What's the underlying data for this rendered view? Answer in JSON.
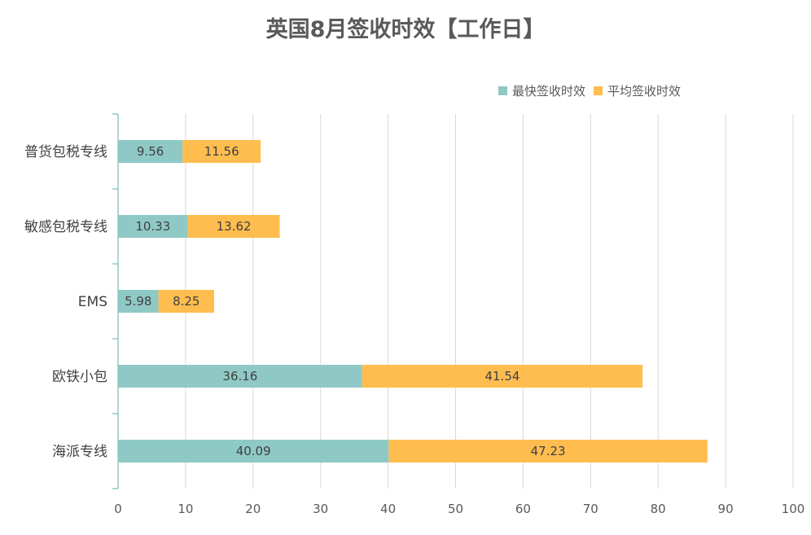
{
  "chart_data": {
    "type": "bar",
    "orientation": "horizontal",
    "stacked": true,
    "title": "英国8月签收时效【工作日】",
    "categories": [
      "普货包税专线",
      "敏感包税专线",
      "EMS",
      "欧铁小包",
      "海派专线"
    ],
    "series": [
      {
        "name": "最快签收时效",
        "color": "#8fc9c5",
        "values": [
          9.56,
          10.33,
          5.98,
          36.16,
          40.09
        ]
      },
      {
        "name": "平均签收时效",
        "color": "#ffbd4f",
        "values": [
          11.56,
          13.62,
          8.25,
          41.54,
          47.23
        ]
      }
    ],
    "xlim": [
      0,
      100
    ],
    "xticks": [
      0,
      10,
      20,
      30,
      40,
      50,
      60,
      70,
      80,
      90,
      100
    ],
    "xlabel": "",
    "ylabel": "",
    "grid": "vertical",
    "legend_position": "top-right",
    "colors": {
      "grid": "#d9d9d9",
      "axis": "#8fc9c5",
      "text": "#404040"
    }
  }
}
